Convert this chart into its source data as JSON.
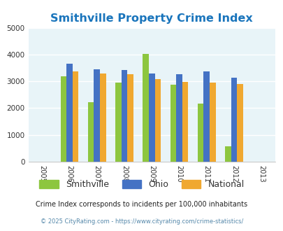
{
  "title": "Smithville Property Crime Index",
  "years": [
    2005,
    2006,
    2007,
    2008,
    2009,
    2010,
    2011,
    2012,
    2013
  ],
  "bar_years": [
    2006,
    2007,
    2008,
    2009,
    2010,
    2011,
    2012
  ],
  "smithville": [
    3180,
    2220,
    2950,
    4020,
    2880,
    2170,
    580
  ],
  "ohio": [
    3660,
    3460,
    3420,
    3290,
    3270,
    3380,
    3140
  ],
  "national": [
    3360,
    3280,
    3260,
    3080,
    2980,
    2960,
    2900
  ],
  "colors": {
    "smithville": "#8dc63f",
    "ohio": "#4472c4",
    "national": "#f0a830"
  },
  "ylim": [
    0,
    5000
  ],
  "yticks": [
    0,
    1000,
    2000,
    3000,
    4000,
    5000
  ],
  "background_color": "#e8f4f8",
  "legend_labels": [
    "Smithville",
    "Ohio",
    "National"
  ],
  "footnote1": "Crime Index corresponds to incidents per 100,000 inhabitants",
  "footnote2": "© 2025 CityRating.com - https://www.cityrating.com/crime-statistics/",
  "title_color": "#1a75bc",
  "footnote1_color": "#222222",
  "footnote2_color": "#5588aa"
}
